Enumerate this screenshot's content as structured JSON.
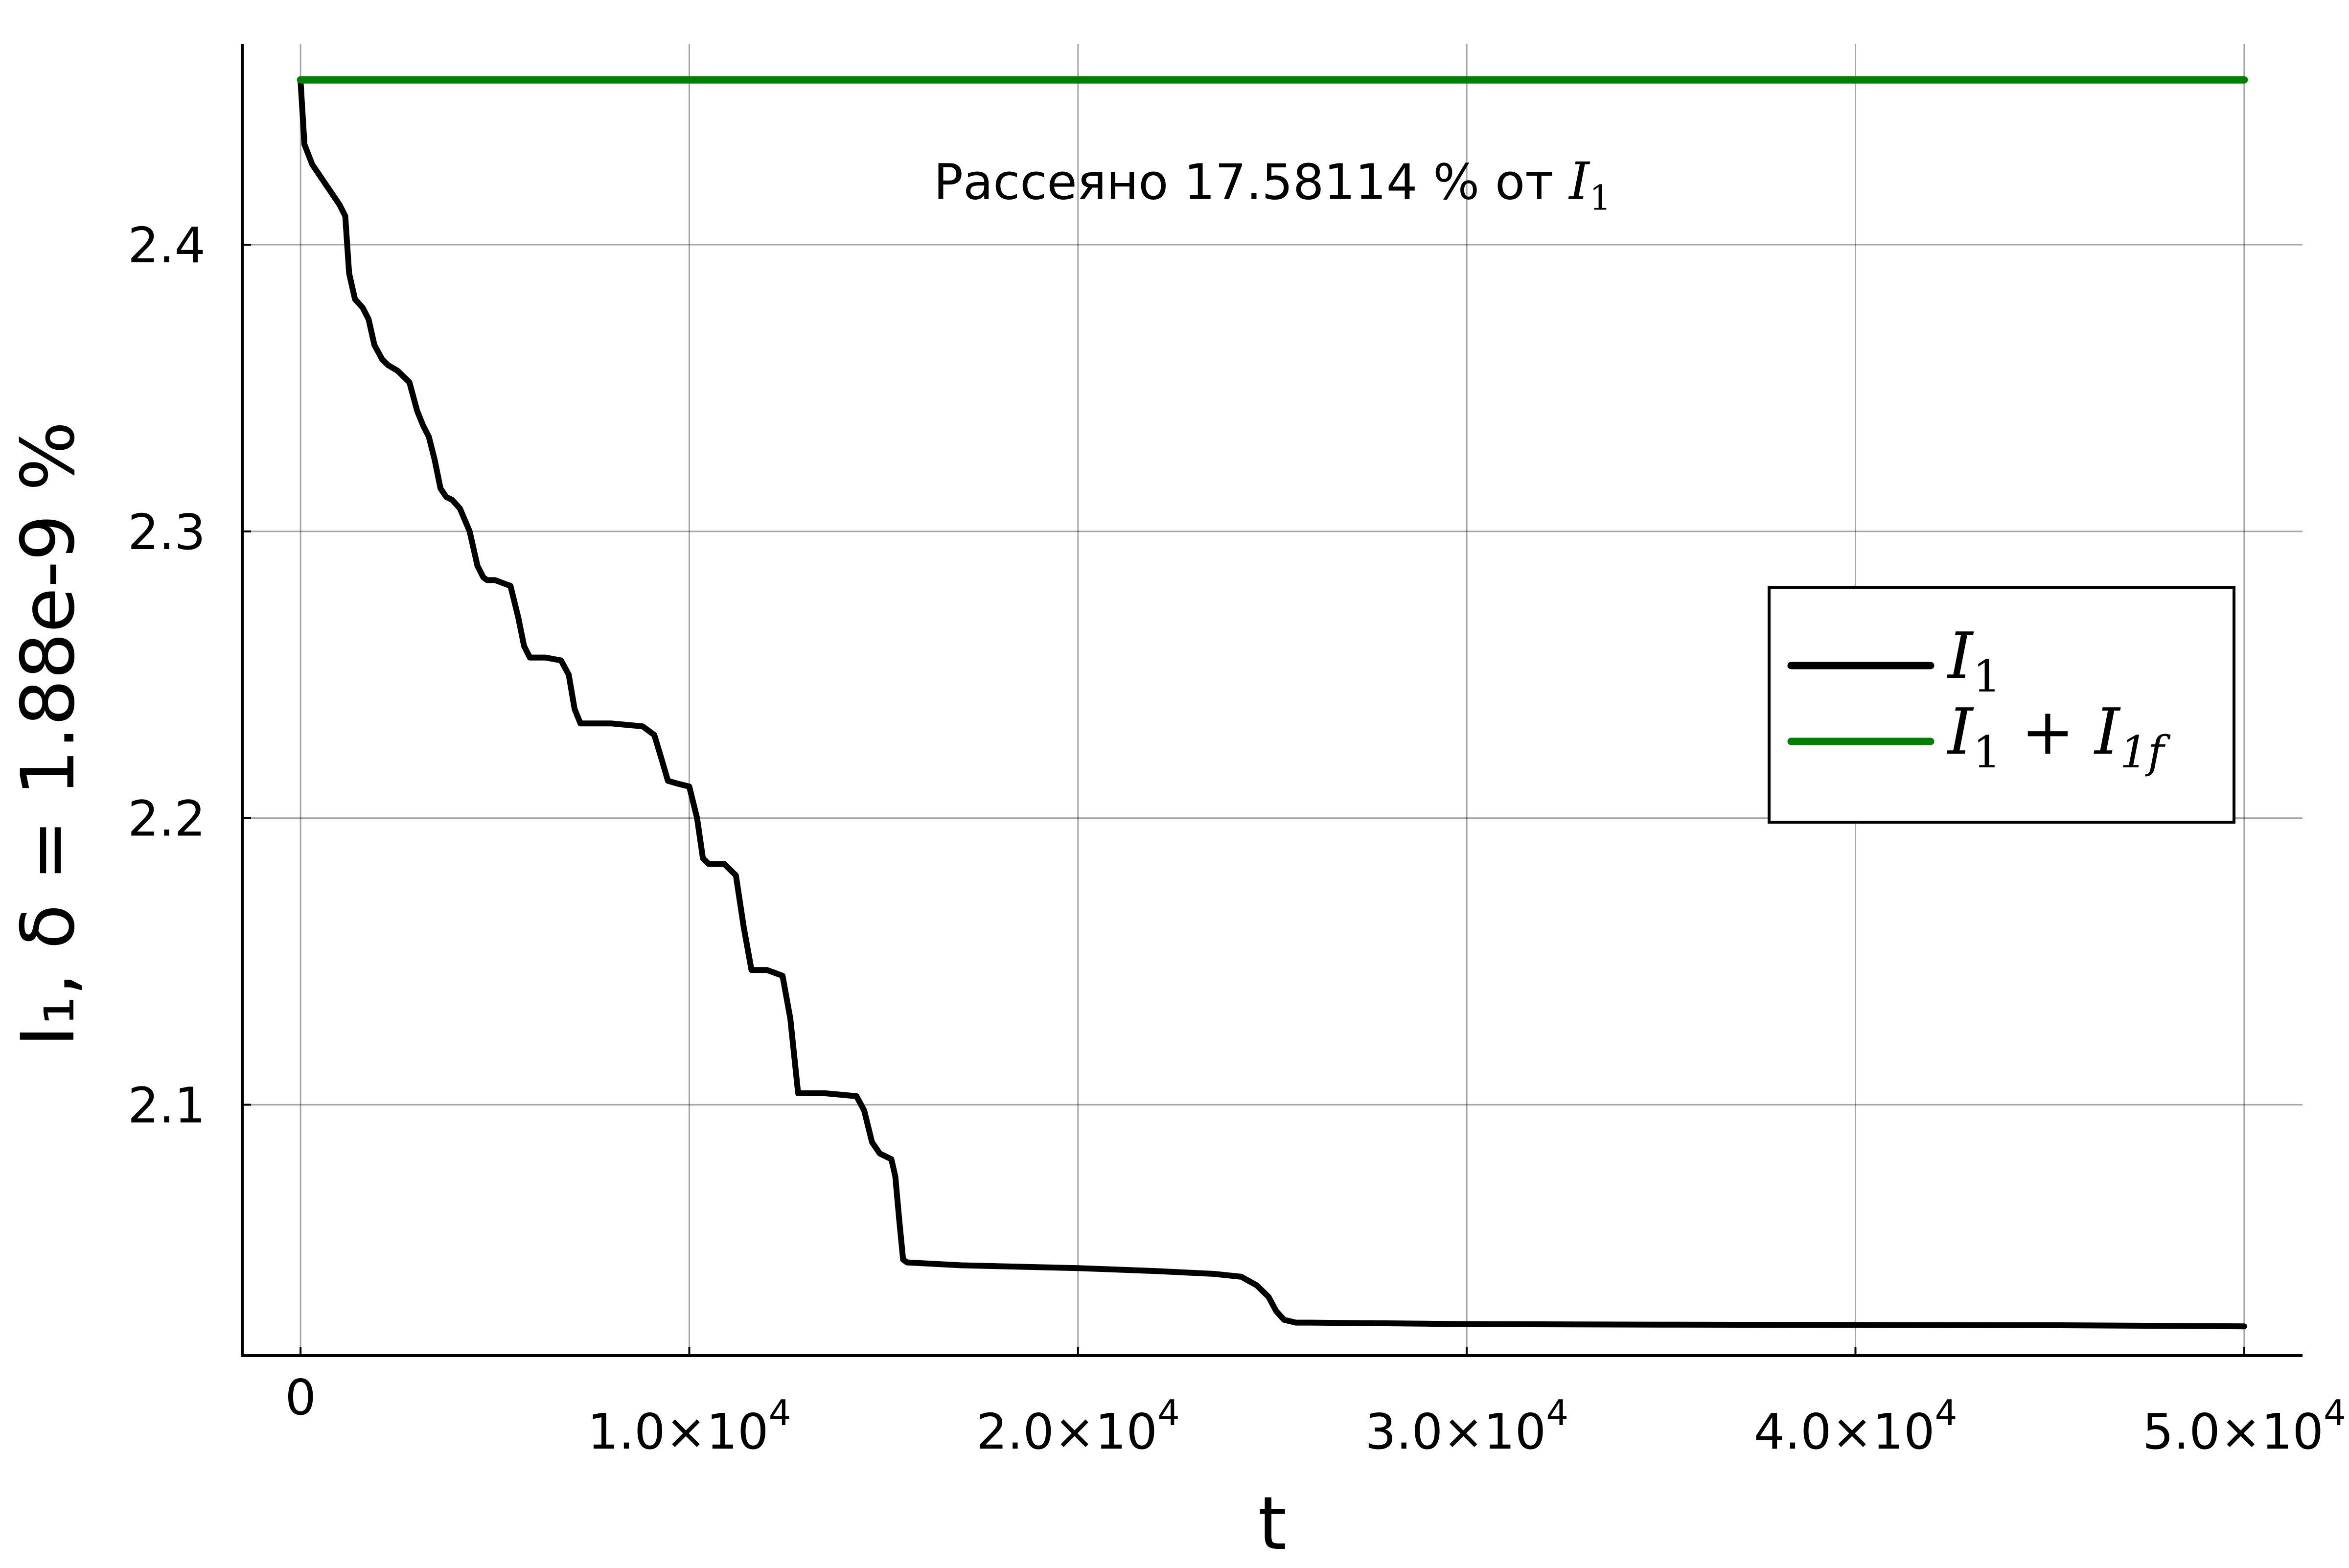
{
  "chart_data": {
    "type": "line",
    "xlabel": "t",
    "ylabel": "I₁, δ = 1.88e-9 %",
    "xlim": [
      -1500,
      51500
    ],
    "ylim": [
      2.0125,
      2.47
    ],
    "grid": true,
    "legend_position": "right",
    "x_ticks": [
      {
        "value": 0,
        "mantissa": "0",
        "exponent": ""
      },
      {
        "value": 10000,
        "mantissa": "1.0×10",
        "exponent": "4"
      },
      {
        "value": 20000,
        "mantissa": "2.0×10",
        "exponent": "4"
      },
      {
        "value": 30000,
        "mantissa": "3.0×10",
        "exponent": "4"
      },
      {
        "value": 40000,
        "mantissa": "4.0×10",
        "exponent": "4"
      },
      {
        "value": 50000,
        "mantissa": "5.0×10",
        "exponent": "4"
      }
    ],
    "y_ticks": [
      {
        "value": 2.1,
        "label": "2.1"
      },
      {
        "value": 2.2,
        "label": "2.2"
      },
      {
        "value": 2.3,
        "label": "2.3"
      },
      {
        "value": 2.4,
        "label": "2.4"
      }
    ],
    "annotation": {
      "text": "Рассеяно 17.58114 % от ",
      "math": "I",
      "math_sub": "1",
      "x": 25000,
      "y": 2.416
    },
    "series": [
      {
        "name": "I₁",
        "legend_math": "I",
        "legend_sub": "1",
        "color": "#000000",
        "x": [
          0,
          100,
          300,
          600,
          1000,
          1150,
          1250,
          1400,
          1600,
          1750,
          1900,
          2100,
          2250,
          2500,
          2800,
          3000,
          3150,
          3300,
          3450,
          3600,
          3750,
          3900,
          4100,
          4350,
          4550,
          4700,
          4800,
          5000,
          5400,
          5600,
          5750,
          5900,
          6300,
          6700,
          6900,
          7050,
          7200,
          8000,
          8800,
          9100,
          9300,
          9450,
          9700,
          10000,
          10200,
          10350,
          10500,
          10900,
          11200,
          11400,
          11600,
          12000,
          12400,
          12600,
          12800,
          13500,
          14300,
          14500,
          14700,
          14900,
          15200,
          15300,
          15400,
          15500,
          15600,
          17000,
          20000,
          22000,
          23500,
          24200,
          24600,
          24900,
          25100,
          25300,
          25600,
          26000,
          30000,
          35000,
          40000,
          45000,
          50000
        ],
        "values": [
          2.457,
          2.435,
          2.428,
          2.422,
          2.414,
          2.41,
          2.39,
          2.381,
          2.378,
          2.374,
          2.365,
          2.36,
          2.358,
          2.356,
          2.352,
          2.342,
          2.337,
          2.333,
          2.325,
          2.315,
          2.312,
          2.311,
          2.308,
          2.3,
          2.288,
          2.284,
          2.283,
          2.283,
          2.281,
          2.27,
          2.26,
          2.256,
          2.256,
          2.255,
          2.25,
          2.238,
          2.233,
          2.233,
          2.232,
          2.229,
          2.22,
          2.213,
          2.212,
          2.211,
          2.2,
          2.186,
          2.184,
          2.184,
          2.18,
          2.162,
          2.147,
          2.147,
          2.145,
          2.13,
          2.104,
          2.104,
          2.103,
          2.098,
          2.087,
          2.083,
          2.081,
          2.075,
          2.06,
          2.046,
          2.045,
          2.044,
          2.043,
          2.042,
          2.041,
          2.04,
          2.037,
          2.033,
          2.028,
          2.025,
          2.024,
          2.024,
          2.0235,
          2.0233,
          2.0232,
          2.0231,
          2.0227
        ]
      },
      {
        "name": "I₁ + I₁f",
        "legend_math": "I",
        "legend_sub": "1",
        "legend_rest_plus": " + ",
        "legend_math2": "I",
        "legend_sub2": "1f",
        "color": "#008000",
        "x": [
          0,
          50000
        ],
        "values": [
          2.4575,
          2.4575
        ]
      }
    ]
  }
}
